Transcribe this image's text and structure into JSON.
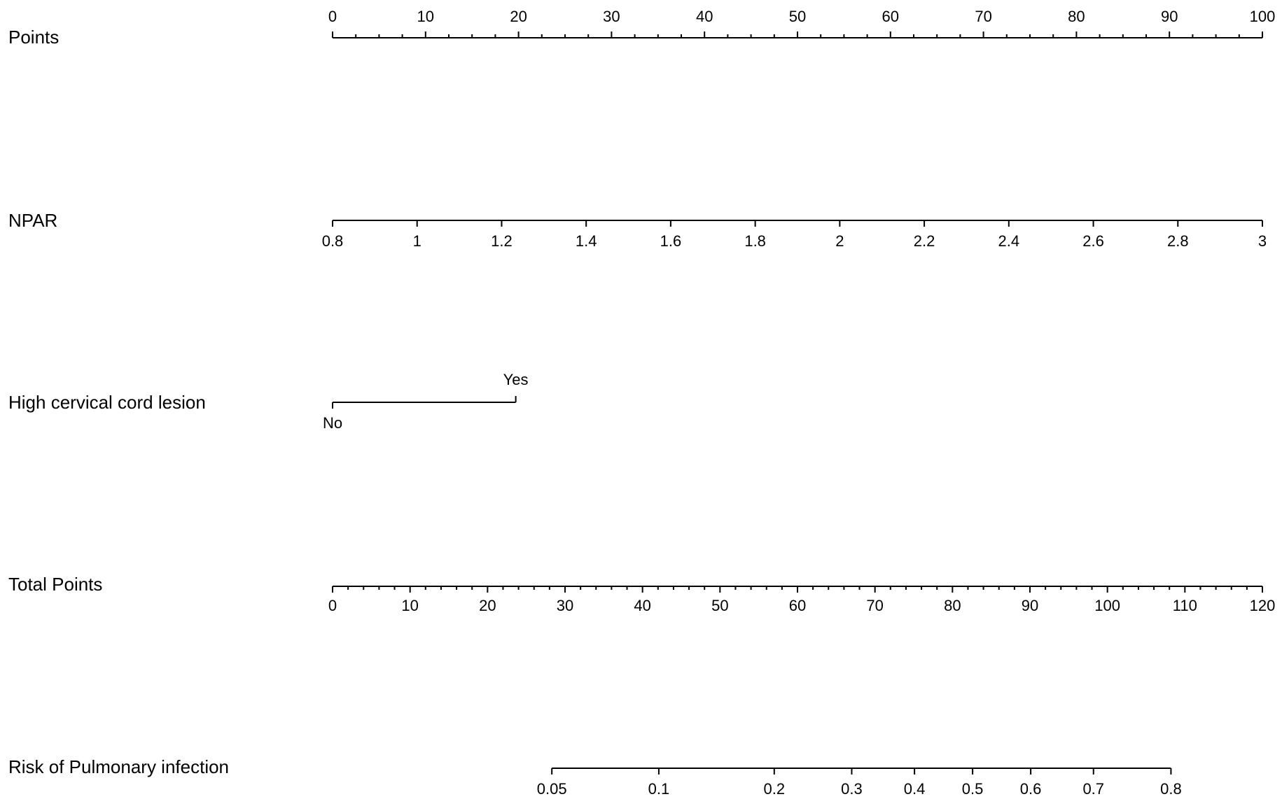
{
  "chart_data": {
    "type": "nomogram",
    "points": {
      "label": "Points",
      "xlim": [
        0,
        100
      ],
      "ticks": [
        0,
        10,
        20,
        30,
        40,
        50,
        60,
        70,
        80,
        90,
        100
      ],
      "minor_ticks": [
        2.5,
        5,
        7.5,
        12.5,
        15,
        17.5,
        22.5,
        25,
        27.5,
        32.5,
        35,
        37.5,
        42.5,
        45,
        47.5,
        52.5,
        55,
        57.5,
        62.5,
        65,
        67.5,
        72.5,
        75,
        77.5,
        82.5,
        85,
        87.5,
        92.5,
        95,
        97.5
      ]
    },
    "variables": [
      {
        "label": "NPAR",
        "xlim": [
          0.8,
          3
        ],
        "points_lim": [
          0,
          100
        ],
        "ticks": [
          0.8,
          1,
          1.2,
          1.4,
          1.6,
          1.8,
          2,
          2.2,
          2.4,
          2.6,
          2.8,
          3
        ]
      },
      {
        "label": "High cervical cord lesion",
        "categories": [
          "No",
          "Yes"
        ],
        "points": [
          0,
          19.7
        ]
      }
    ],
    "total_points": {
      "label": "Total Points",
      "xlim": [
        0,
        120
      ],
      "ticks": [
        0,
        10,
        20,
        30,
        40,
        50,
        60,
        70,
        80,
        90,
        100,
        110,
        120
      ],
      "minor_ticks": [
        2,
        4,
        6,
        8,
        12,
        14,
        16,
        18,
        22,
        24,
        26,
        28,
        32,
        34,
        36,
        38,
        42,
        44,
        46,
        48,
        52,
        54,
        56,
        58,
        62,
        64,
        66,
        68,
        72,
        74,
        76,
        78,
        82,
        84,
        86,
        88,
        92,
        94,
        96,
        98,
        102,
        104,
        106,
        108,
        112,
        114,
        116,
        118
      ]
    },
    "risk": {
      "label": "Risk of Pulmonary infection",
      "ticks": [
        0.05,
        0.1,
        0.2,
        0.3,
        0.4,
        0.5,
        0.6,
        0.7,
        0.8
      ],
      "total_points": [
        28.3,
        42.1,
        57.0,
        67.0,
        75.1,
        82.6,
        90.1,
        98.2,
        108.2
      ]
    }
  }
}
